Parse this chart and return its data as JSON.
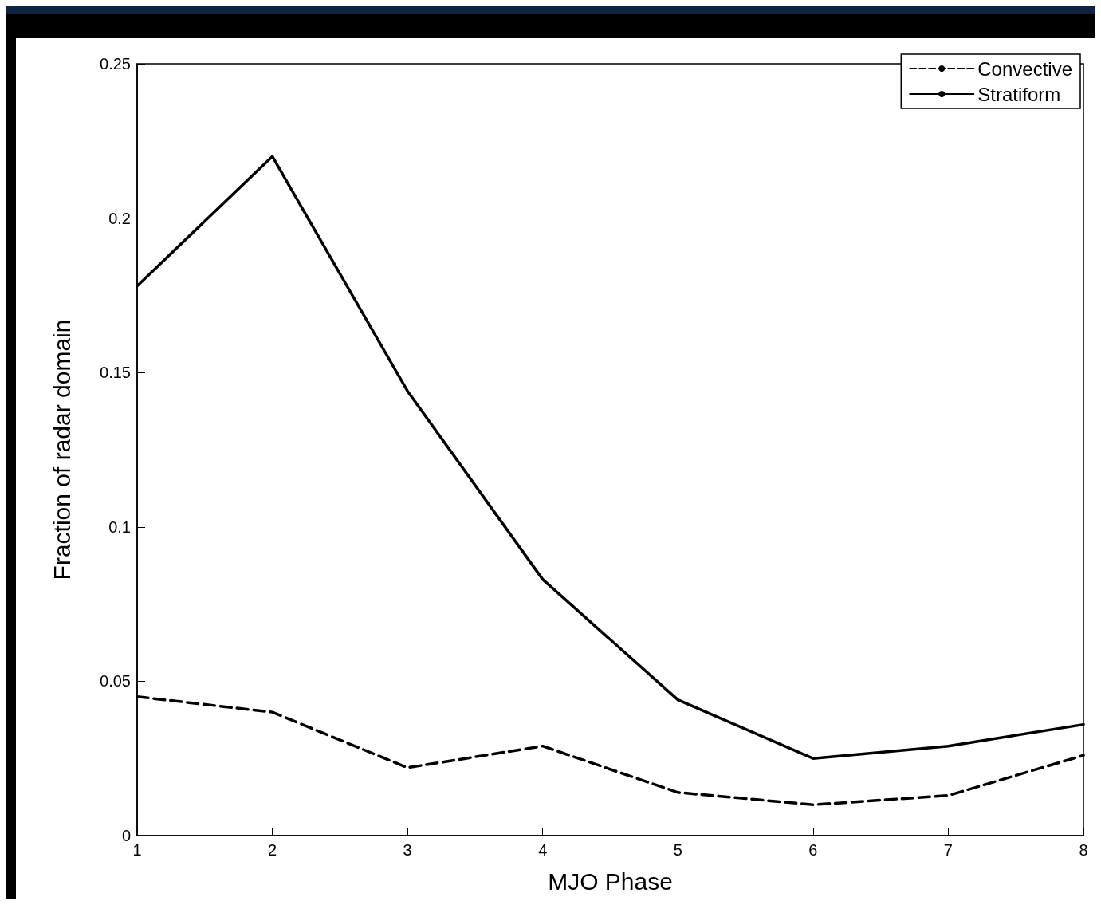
{
  "chart_data": {
    "type": "line",
    "xlabel": "MJO Phase",
    "ylabel": "Fraction of radar domain",
    "x": [
      1,
      2,
      3,
      4,
      5,
      6,
      7,
      8
    ],
    "xlim": [
      1,
      8
    ],
    "xticks": [
      1,
      2,
      3,
      4,
      5,
      6,
      7,
      8
    ],
    "ylim": [
      0,
      0.25
    ],
    "yticks": [
      0,
      0.05,
      0.1,
      0.15,
      0.2,
      0.25
    ],
    "series": [
      {
        "name": "Convective",
        "color": "#000000",
        "line_style": "dashed",
        "values": [
          0.045,
          0.04,
          0.022,
          0.029,
          0.014,
          0.01,
          0.013,
          0.026
        ]
      },
      {
        "name": "Stratiform",
        "color": "#000000",
        "line_style": "solid",
        "values": [
          0.178,
          0.22,
          0.144,
          0.083,
          0.044,
          0.025,
          0.029,
          0.036
        ]
      }
    ],
    "grid": false,
    "legend": "top right",
    "marker": "none"
  }
}
